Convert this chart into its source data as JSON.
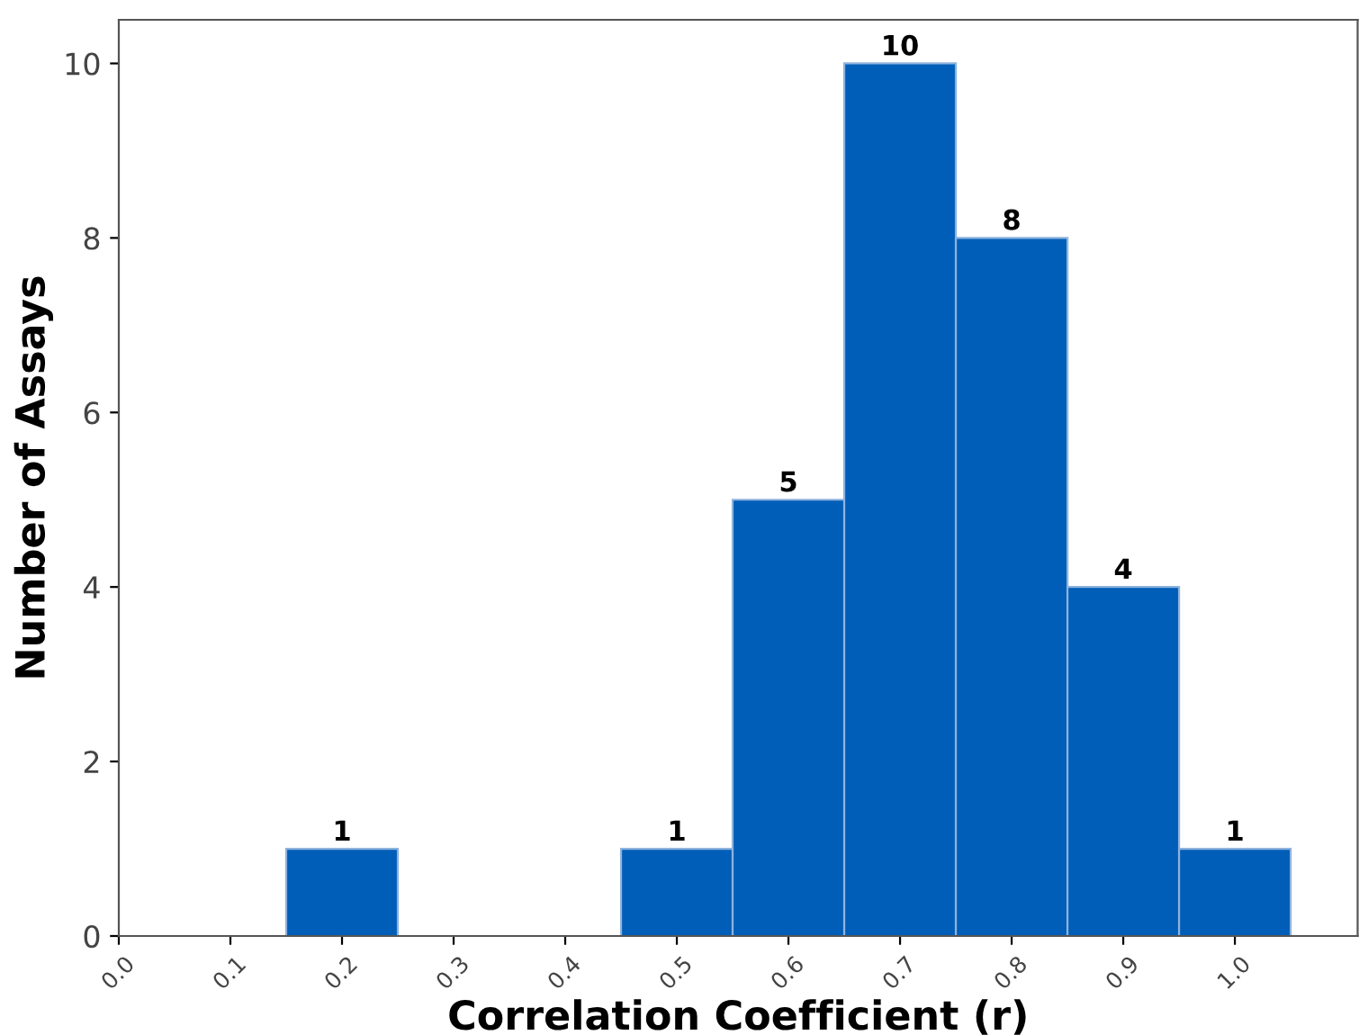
{
  "chart_data": {
    "type": "histogram",
    "xlabel": "Correlation Coefficient (r)",
    "ylabel": "Number of Assays",
    "bins": [
      0.15,
      0.25,
      0.35,
      0.45,
      0.55,
      0.65,
      0.75,
      0.85,
      0.95,
      1.05
    ],
    "values": [
      1,
      0,
      0,
      1,
      5,
      10,
      8,
      4,
      1
    ],
    "value_labels": [
      "1",
      null,
      null,
      "1",
      "5",
      "10",
      "8",
      "4",
      "1"
    ],
    "color": "#005eb8",
    "xlim": [
      0,
      1.11
    ],
    "xticks": [
      {
        "value": 0,
        "label": "0.0"
      },
      0.1,
      0.2,
      0.3,
      0.4,
      0.5,
      0.6,
      0.7,
      0.8,
      0.9,
      {
        "value": 1,
        "label": "1.0"
      }
    ],
    "ylim": [
      0,
      10.5
    ],
    "yticks": [
      0,
      2,
      4,
      6,
      8,
      10
    ],
    "grid": false,
    "legend": false
  }
}
